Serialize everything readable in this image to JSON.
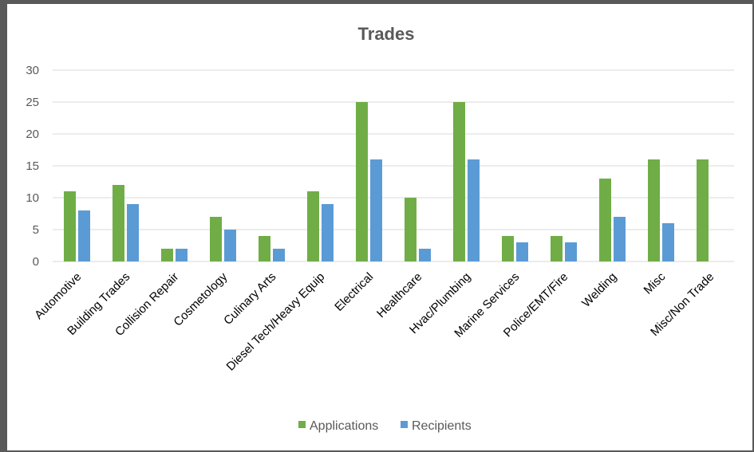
{
  "chart_data": {
    "type": "bar",
    "title": "Trades",
    "xlabel": "",
    "ylabel": "",
    "ylim": [
      0,
      30
    ],
    "yticks": [
      0,
      5,
      10,
      15,
      20,
      25,
      30
    ],
    "grid": true,
    "legend_position": "bottom",
    "categories": [
      "Automotive",
      "Building Trades",
      "Collision Repair",
      "Cosmetology",
      "Culinary Arts",
      "Diesel Tech/Heavy Equip",
      "Electrical",
      "Healthcare",
      "Hvac/Plumbing",
      "Marine Services",
      "Police/EMT/Fire",
      "Welding",
      "Misc",
      "Misc/Non Trade"
    ],
    "series": [
      {
        "name": "Applications",
        "color": "#70ad47",
        "values": [
          11,
          12,
          2,
          7,
          4,
          11,
          25,
          10,
          25,
          4,
          4,
          13,
          16,
          16
        ]
      },
      {
        "name": "Recipients",
        "color": "#5b9bd5",
        "values": [
          8,
          9,
          2,
          5,
          2,
          9,
          16,
          2,
          16,
          3,
          3,
          7,
          6,
          0
        ]
      }
    ]
  }
}
